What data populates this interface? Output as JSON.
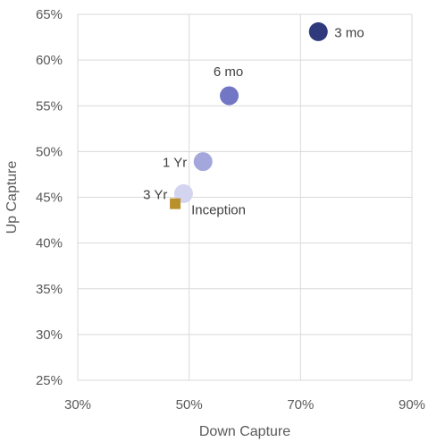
{
  "chart_data": {
    "type": "scatter",
    "xlabel": "Down Capture",
    "ylabel": "Up Capture",
    "xlim": [
      30,
      90
    ],
    "ylim": [
      25,
      65
    ],
    "x_ticks": [
      "30%",
      "50%",
      "70%",
      "90%"
    ],
    "y_ticks": [
      "25%",
      "30%",
      "35%",
      "40%",
      "45%",
      "50%",
      "55%",
      "60%",
      "65%"
    ],
    "grid": true,
    "points": [
      {
        "label": "3 mo",
        "x": 73.2,
        "y": 63.1,
        "color": "#2e3a7c",
        "marker": "circle"
      },
      {
        "label": "6 mo",
        "x": 57.2,
        "y": 56.1,
        "color": "#7277c5",
        "marker": "circle"
      },
      {
        "label": "1 Yr",
        "x": 52.5,
        "y": 48.9,
        "color": "#a4a7dc",
        "marker": "circle"
      },
      {
        "label": "3 Yr",
        "x": 49.0,
        "y": 45.4,
        "color": "#d3d4ef",
        "marker": "circle"
      },
      {
        "label": "Inception",
        "x": 47.5,
        "y": 44.3,
        "color": "#b8902c",
        "marker": "square"
      }
    ]
  }
}
